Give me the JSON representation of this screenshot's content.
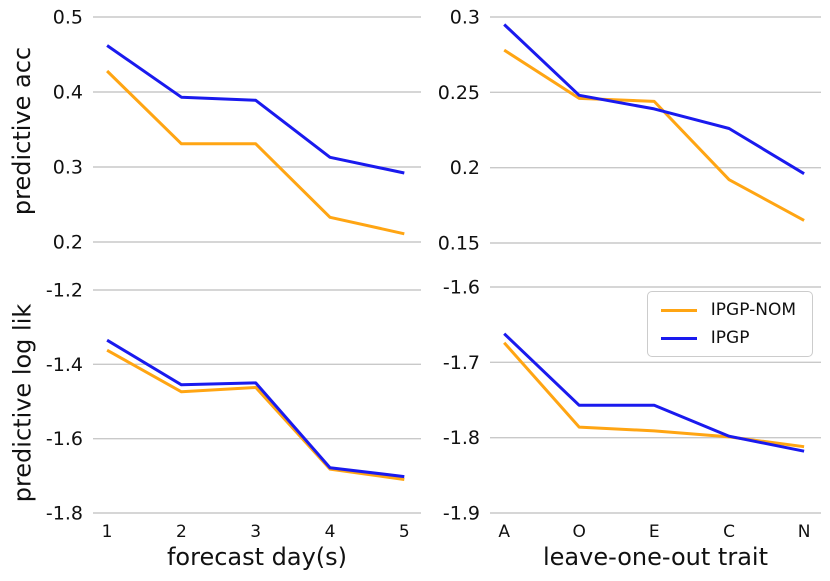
{
  "colors": {
    "ipgp_nom": "#ffa513",
    "ipgp": "#1a1aee",
    "grid": "#c9c9c9",
    "text": "#111111"
  },
  "legend": {
    "items": [
      {
        "label": "IPGP-NOM",
        "color_key": "ipgp_nom"
      },
      {
        "label": "IPGP",
        "color_key": "ipgp"
      }
    ]
  },
  "chart_data": [
    {
      "id": "predictive-acc-vs-forecast-day",
      "type": "line",
      "title": "",
      "ylabel": "predictive acc",
      "xlabel": "",
      "categories": [
        "1",
        "2",
        "3",
        "4",
        "5"
      ],
      "show_x_tick_labels": false,
      "y_tick_labels": [
        "0.5",
        "0.4",
        "0.3",
        "0.2"
      ],
      "y_tick_values": [
        0.5,
        0.4,
        0.3,
        0.2
      ],
      "ylim": [
        0.2,
        0.5
      ],
      "grid": "horizontal",
      "series": [
        {
          "name": "IPGP-NOM",
          "color_key": "ipgp_nom",
          "values": [
            0.428,
            0.331,
            0.331,
            0.233,
            0.211
          ]
        },
        {
          "name": "IPGP",
          "color_key": "ipgp",
          "values": [
            0.462,
            0.393,
            0.389,
            0.313,
            0.292
          ]
        }
      ]
    },
    {
      "id": "predictive-acc-vs-leave-one-out-trait",
      "type": "line",
      "title": "",
      "ylabel": "",
      "xlabel": "",
      "categories": [
        "A",
        "O",
        "E",
        "C",
        "N"
      ],
      "show_x_tick_labels": false,
      "y_tick_labels": [
        "0.3",
        "0.25",
        "0.2",
        "0.15"
      ],
      "y_tick_values": [
        0.3,
        0.25,
        0.2,
        0.15
      ],
      "ylim": [
        0.15,
        0.3
      ],
      "grid": "horizontal",
      "series": [
        {
          "name": "IPGP-NOM",
          "color_key": "ipgp_nom",
          "values": [
            0.278,
            0.246,
            0.244,
            0.192,
            0.165
          ]
        },
        {
          "name": "IPGP",
          "color_key": "ipgp",
          "values": [
            0.295,
            0.248,
            0.239,
            0.226,
            0.196
          ]
        }
      ]
    },
    {
      "id": "predictive-log-lik-vs-forecast-day",
      "type": "line",
      "title": "",
      "ylabel": "predictive log lik",
      "xlabel": "forecast day(s)",
      "categories": [
        "1",
        "2",
        "3",
        "4",
        "5"
      ],
      "show_x_tick_labels": true,
      "y_tick_labels": [
        "-1.2",
        "-1.4",
        "-1.6",
        "-1.8"
      ],
      "y_tick_values": [
        -1.2,
        -1.4,
        -1.6,
        -1.8
      ],
      "ylim": [
        -1.8,
        -1.2
      ],
      "grid": "horizontal",
      "series": [
        {
          "name": "IPGP-NOM",
          "color_key": "ipgp_nom",
          "values": [
            -1.362,
            -1.474,
            -1.462,
            -1.682,
            -1.71
          ]
        },
        {
          "name": "IPGP",
          "color_key": "ipgp",
          "values": [
            -1.335,
            -1.455,
            -1.45,
            -1.678,
            -1.702
          ]
        }
      ]
    },
    {
      "id": "predictive-log-lik-vs-leave-one-out-trait",
      "type": "line",
      "title": "",
      "ylabel": "",
      "xlabel": "leave-one-out trait",
      "categories": [
        "A",
        "O",
        "E",
        "C",
        "N"
      ],
      "show_x_tick_labels": true,
      "y_tick_labels": [
        "-1.6",
        "-1.7",
        "-1.8",
        "-1.9"
      ],
      "y_tick_values": [
        -1.6,
        -1.7,
        -1.8,
        -1.9
      ],
      "ylim": [
        -1.9,
        -1.6
      ],
      "grid": "horizontal",
      "legend_position": "upper right",
      "series": [
        {
          "name": "IPGP-NOM",
          "color_key": "ipgp_nom",
          "values": [
            -1.674,
            -1.786,
            -1.791,
            -1.799,
            -1.812
          ]
        },
        {
          "name": "IPGP",
          "color_key": "ipgp",
          "values": [
            -1.662,
            -1.757,
            -1.757,
            -1.798,
            -1.818
          ]
        }
      ]
    }
  ]
}
